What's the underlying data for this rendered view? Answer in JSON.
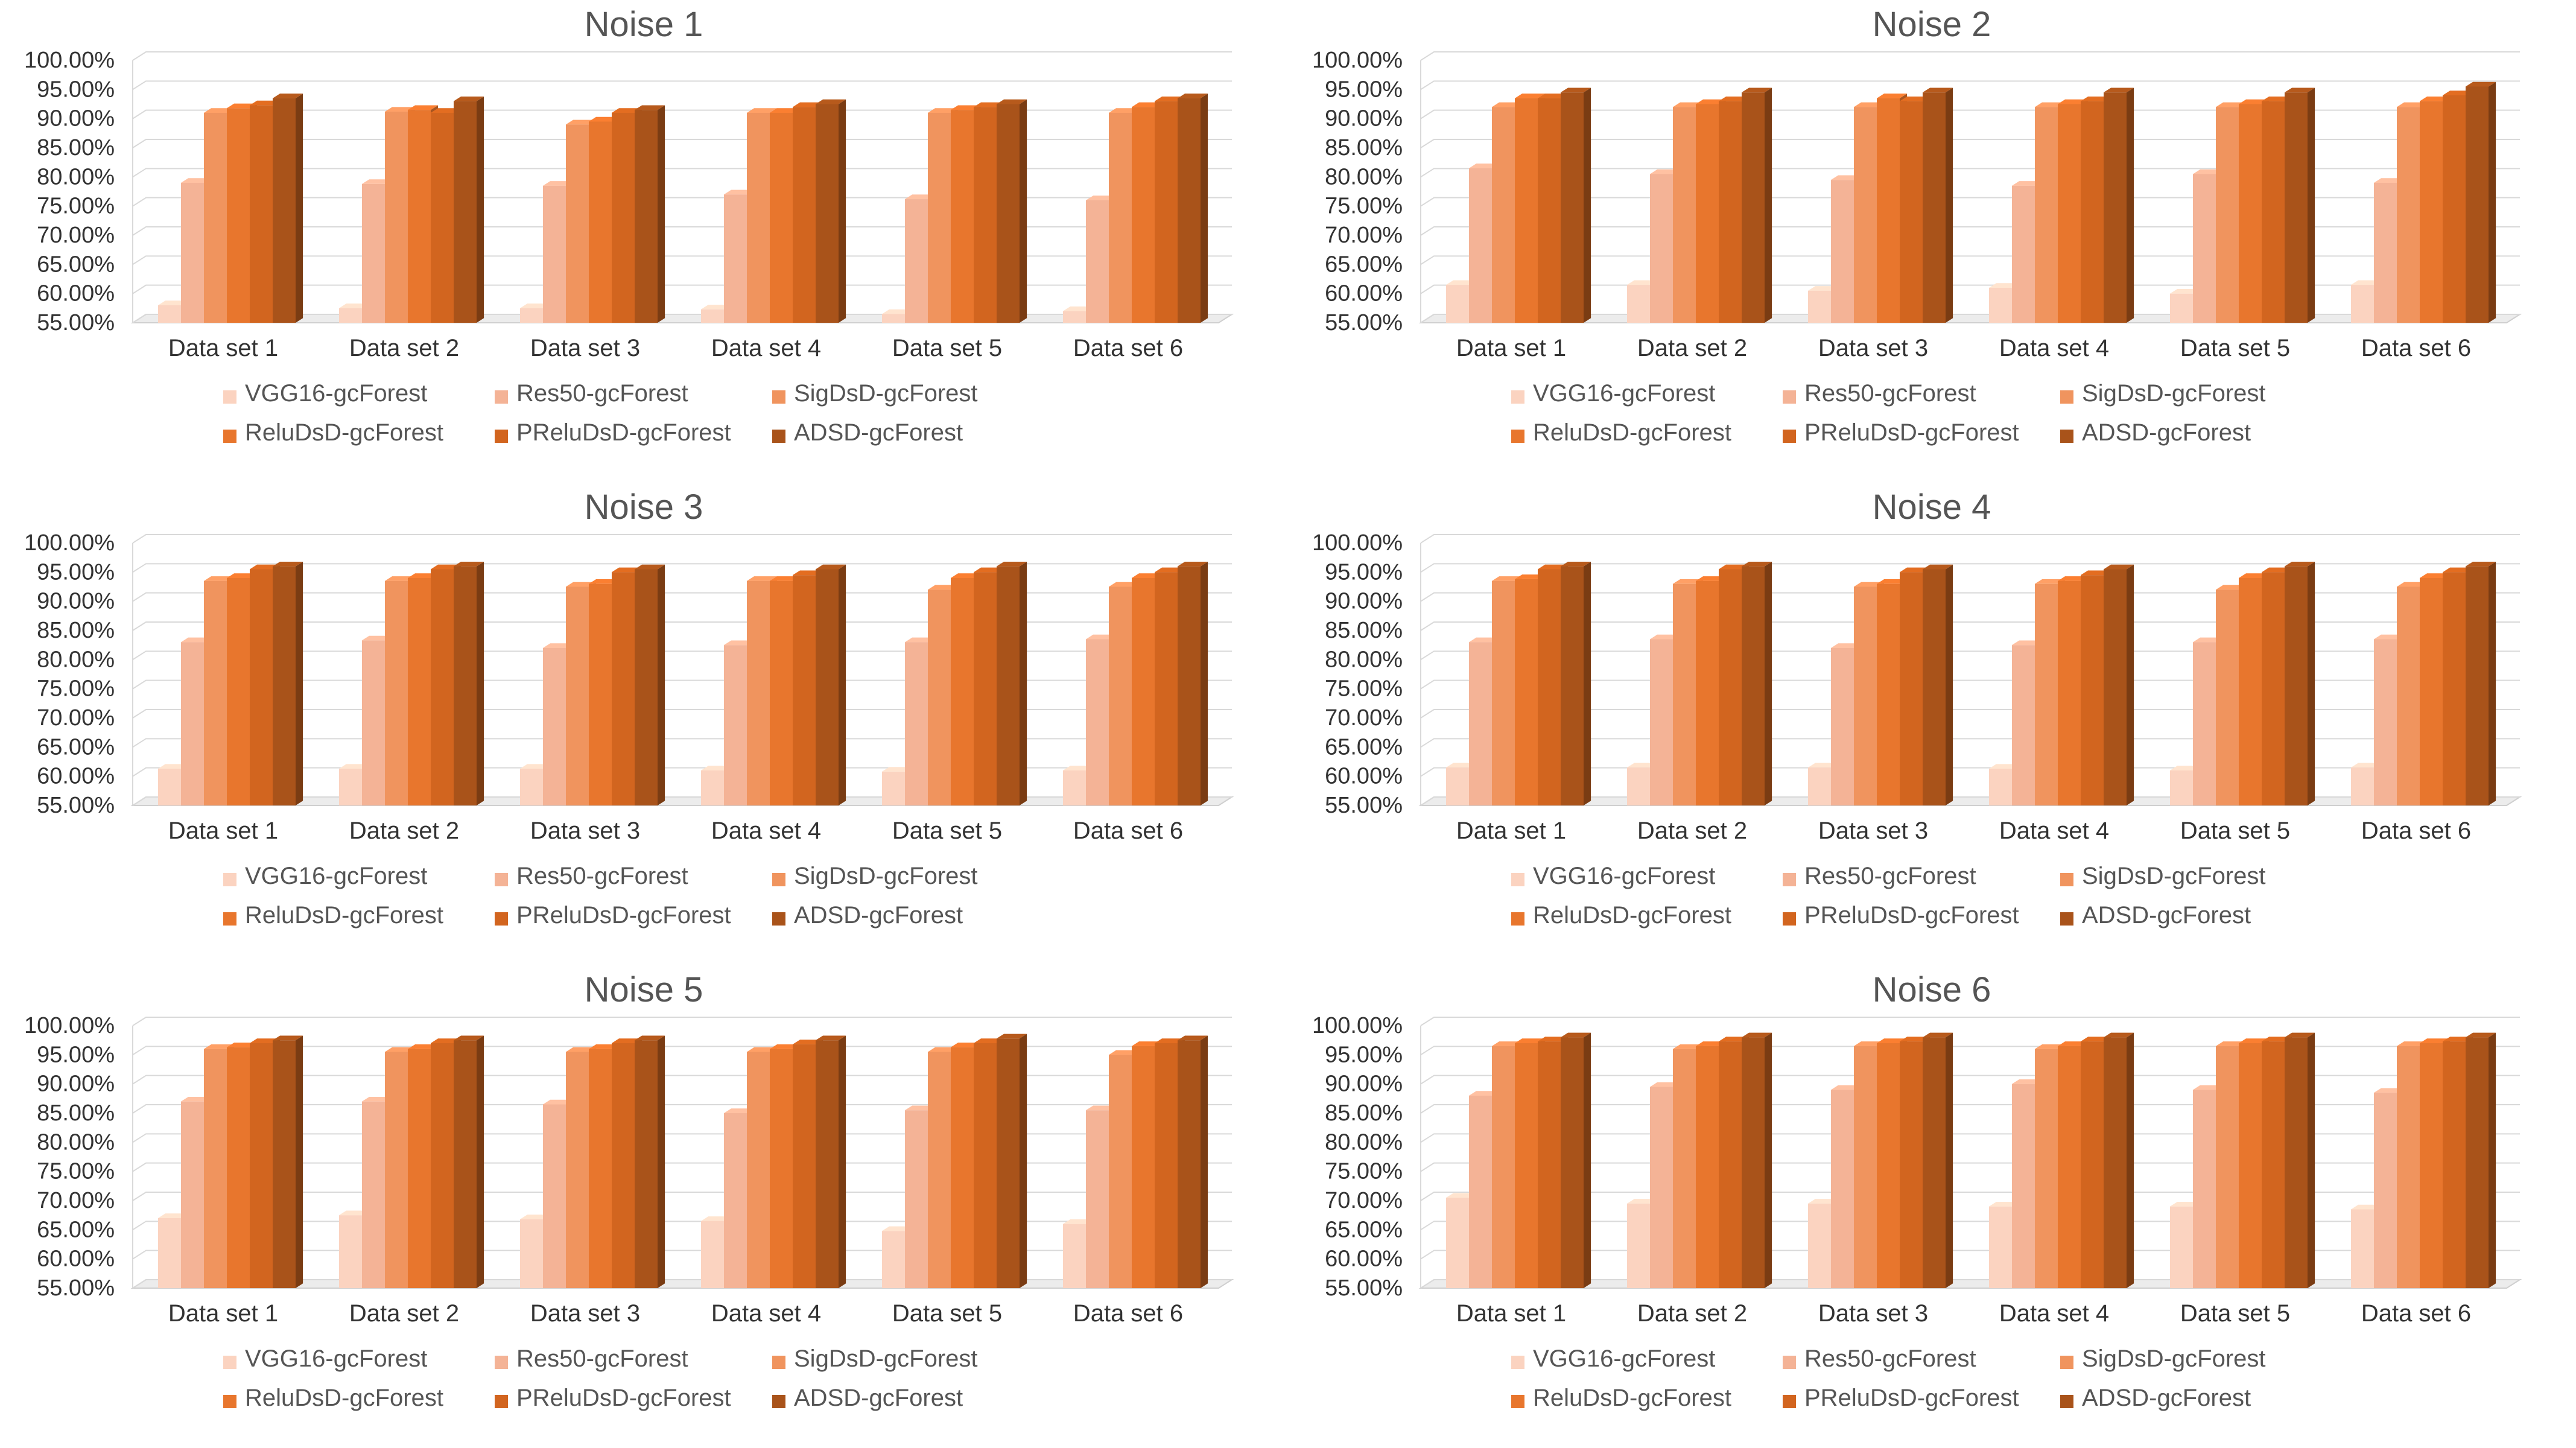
{
  "chart_data": [
    {
      "type": "bar",
      "title": "Noise 1",
      "categories": [
        "Data set 1",
        "Data set 2",
        "Data set 3",
        "Data set 4",
        "Data set 5",
        "Data set 6"
      ],
      "yticks": [
        "55.00%",
        "60.00%",
        "65.00%",
        "70.00%",
        "75.00%",
        "80.00%",
        "85.00%",
        "90.00%",
        "95.00%",
        "100.00%"
      ],
      "ylim": [
        55,
        100
      ],
      "series": [
        {
          "name": "VGG16-gcForest",
          "color": "#fbd3c0",
          "values": [
            58.0,
            57.5,
            57.5,
            57.3,
            56.5,
            57.0
          ]
        },
        {
          "name": "Res50-gcForest",
          "color": "#f4b396",
          "values": [
            79.0,
            78.8,
            78.5,
            77.0,
            76.2,
            76.0
          ]
        },
        {
          "name": "SigDsD-gcForest",
          "color": "#f0945e",
          "values": [
            91.0,
            91.2,
            89.0,
            91.0,
            91.0,
            91.0
          ]
        },
        {
          "name": "ReluDsD-gcForest",
          "color": "#e8762d",
          "values": [
            91.8,
            91.5,
            89.5,
            91.0,
            91.5,
            92.0
          ]
        },
        {
          "name": "PReluDsD-gcForest",
          "color": "#d2651f",
          "values": [
            92.3,
            91.0,
            91.0,
            92.0,
            92.0,
            93.0
          ]
        },
        {
          "name": "ADSD-gcForest",
          "color": "#a9531a",
          "values": [
            93.5,
            93.0,
            91.5,
            92.5,
            92.5,
            93.5
          ]
        }
      ]
    },
    {
      "type": "bar",
      "title": "Noise 2",
      "categories": [
        "Data set 1",
        "Data set 2",
        "Data set 3",
        "Data set 4",
        "Data set 5",
        "Data set 6"
      ],
      "yticks": [
        "55.00%",
        "60.00%",
        "65.00%",
        "70.00%",
        "75.00%",
        "80.00%",
        "85.00%",
        "90.00%",
        "95.00%",
        "100.00%"
      ],
      "ylim": [
        55,
        100
      ],
      "series": [
        {
          "name": "VGG16-gcForest",
          "color": "#fbd3c0",
          "values": [
            61.5,
            61.5,
            60.5,
            61.0,
            60.0,
            61.5
          ]
        },
        {
          "name": "Res50-gcForest",
          "color": "#f4b396",
          "values": [
            81.5,
            80.5,
            79.5,
            78.5,
            80.5,
            79.0
          ]
        },
        {
          "name": "SigDsD-gcForest",
          "color": "#f0945e",
          "values": [
            92.0,
            92.0,
            92.0,
            92.0,
            92.0,
            92.0
          ]
        },
        {
          "name": "ReluDsD-gcForest",
          "color": "#e8762d",
          "values": [
            93.5,
            92.5,
            93.5,
            92.5,
            92.5,
            93.0
          ]
        },
        {
          "name": "PReluDsD-gcForest",
          "color": "#d2651f",
          "values": [
            93.5,
            93.0,
            93.0,
            93.0,
            93.0,
            94.0
          ]
        },
        {
          "name": "ADSD-gcForest",
          "color": "#a9531a",
          "values": [
            94.5,
            94.5,
            94.5,
            94.5,
            94.5,
            95.5
          ]
        }
      ]
    },
    {
      "type": "bar",
      "title": "Noise 3",
      "categories": [
        "Data set 1",
        "Data set 2",
        "Data set 3",
        "Data set 4",
        "Data set 5",
        "Data set 6"
      ],
      "yticks": [
        "55.00%",
        "60.00%",
        "65.00%",
        "70.00%",
        "75.00%",
        "80.00%",
        "85.00%",
        "90.00%",
        "95.00%",
        "100.00%"
      ],
      "ylim": [
        55,
        100
      ],
      "series": [
        {
          "name": "VGG16-gcForest",
          "color": "#fbd3c0",
          "values": [
            61.3,
            61.3,
            61.3,
            61.0,
            60.8,
            61.0
          ]
        },
        {
          "name": "Res50-gcForest",
          "color": "#f4b396",
          "values": [
            83.0,
            83.3,
            82.0,
            82.5,
            83.0,
            83.5
          ]
        },
        {
          "name": "SigDsD-gcForest",
          "color": "#f0945e",
          "values": [
            93.5,
            93.5,
            92.5,
            93.5,
            92.0,
            92.5
          ]
        },
        {
          "name": "ReluDsD-gcForest",
          "color": "#e8762d",
          "values": [
            94.0,
            94.0,
            93.0,
            93.5,
            94.0,
            94.0
          ]
        },
        {
          "name": "PReluDsD-gcForest",
          "color": "#d2651f",
          "values": [
            95.5,
            95.5,
            95.0,
            94.5,
            95.0,
            95.0
          ]
        },
        {
          "name": "ADSD-gcForest",
          "color": "#a9531a",
          "values": [
            96.0,
            96.0,
            95.5,
            95.5,
            96.0,
            96.0
          ]
        }
      ]
    },
    {
      "type": "bar",
      "title": "Noise 4",
      "categories": [
        "Data set 1",
        "Data set 2",
        "Data set 3",
        "Data set 4",
        "Data set 5",
        "Data set 6"
      ],
      "yticks": [
        "55.00%",
        "60.00%",
        "65.00%",
        "70.00%",
        "75.00%",
        "80.00%",
        "85.00%",
        "90.00%",
        "95.00%",
        "100.00%"
      ],
      "ylim": [
        55,
        100
      ],
      "series": [
        {
          "name": "VGG16-gcForest",
          "color": "#fbd3c0",
          "values": [
            61.5,
            61.5,
            61.5,
            61.3,
            61.0,
            61.5
          ]
        },
        {
          "name": "Res50-gcForest",
          "color": "#f4b396",
          "values": [
            83.0,
            83.5,
            82.0,
            82.5,
            83.0,
            83.5
          ]
        },
        {
          "name": "SigDsD-gcForest",
          "color": "#f0945e",
          "values": [
            93.5,
            93.0,
            92.5,
            93.0,
            92.0,
            92.5
          ]
        },
        {
          "name": "ReluDsD-gcForest",
          "color": "#e8762d",
          "values": [
            93.8,
            93.5,
            93.0,
            93.5,
            94.0,
            94.0
          ]
        },
        {
          "name": "PReluDsD-gcForest",
          "color": "#d2651f",
          "values": [
            95.5,
            95.5,
            95.0,
            94.5,
            95.0,
            95.0
          ]
        },
        {
          "name": "ADSD-gcForest",
          "color": "#a9531a",
          "values": [
            96.0,
            96.0,
            95.5,
            95.5,
            96.0,
            96.0
          ]
        }
      ]
    },
    {
      "type": "bar",
      "title": "Noise 5",
      "categories": [
        "Data set 1",
        "Data set 2",
        "Data set 3",
        "Data set 4",
        "Data set 5",
        "Data set 6"
      ],
      "yticks": [
        "55.00%",
        "60.00%",
        "65.00%",
        "70.00%",
        "75.00%",
        "80.00%",
        "85.00%",
        "90.00%",
        "95.00%",
        "100.00%"
      ],
      "ylim": [
        55,
        100
      ],
      "series": [
        {
          "name": "VGG16-gcForest",
          "color": "#fbd3c0",
          "values": [
            67.0,
            67.5,
            66.8,
            66.5,
            64.8,
            66.0
          ]
        },
        {
          "name": "Res50-gcForest",
          "color": "#f4b396",
          "values": [
            87.0,
            87.0,
            86.5,
            85.0,
            85.5,
            85.5
          ]
        },
        {
          "name": "SigDsD-gcForest",
          "color": "#f0945e",
          "values": [
            96.0,
            95.5,
            95.5,
            95.5,
            95.5,
            95.0
          ]
        },
        {
          "name": "ReluDsD-gcForest",
          "color": "#e8762d",
          "values": [
            96.3,
            96.0,
            96.0,
            96.0,
            96.3,
            96.5
          ]
        },
        {
          "name": "PReluDsD-gcForest",
          "color": "#d2651f",
          "values": [
            97.0,
            97.0,
            97.0,
            96.8,
            97.0,
            97.0
          ]
        },
        {
          "name": "ADSD-gcForest",
          "color": "#a9531a",
          "values": [
            97.5,
            97.5,
            97.5,
            97.5,
            97.8,
            97.5
          ]
        }
      ]
    },
    {
      "type": "bar",
      "title": "Noise 6",
      "categories": [
        "Data set 1",
        "Data set 2",
        "Data set 3",
        "Data set 4",
        "Data set 5",
        "Data set 6"
      ],
      "yticks": [
        "55.00%",
        "60.00%",
        "65.00%",
        "70.00%",
        "75.00%",
        "80.00%",
        "85.00%",
        "90.00%",
        "95.00%",
        "100.00%"
      ],
      "ylim": [
        55,
        100
      ],
      "series": [
        {
          "name": "VGG16-gcForest",
          "color": "#fbd3c0",
          "values": [
            70.5,
            69.5,
            69.5,
            69.0,
            69.0,
            68.5
          ]
        },
        {
          "name": "Res50-gcForest",
          "color": "#f4b396",
          "values": [
            88.0,
            89.5,
            89.0,
            90.0,
            89.0,
            88.5
          ]
        },
        {
          "name": "SigDsD-gcForest",
          "color": "#f0945e",
          "values": [
            96.5,
            96.0,
            96.5,
            96.0,
            96.5,
            96.5
          ]
        },
        {
          "name": "ReluDsD-gcForest",
          "color": "#e8762d",
          "values": [
            97.0,
            96.5,
            97.0,
            96.5,
            97.0,
            97.0
          ]
        },
        {
          "name": "PReluDsD-gcForest",
          "color": "#d2651f",
          "values": [
            97.3,
            97.3,
            97.3,
            97.3,
            97.3,
            97.3
          ]
        },
        {
          "name": "ADSD-gcForest",
          "color": "#a9531a",
          "values": [
            98.0,
            98.0,
            98.0,
            98.0,
            98.0,
            98.0
          ]
        }
      ]
    }
  ]
}
